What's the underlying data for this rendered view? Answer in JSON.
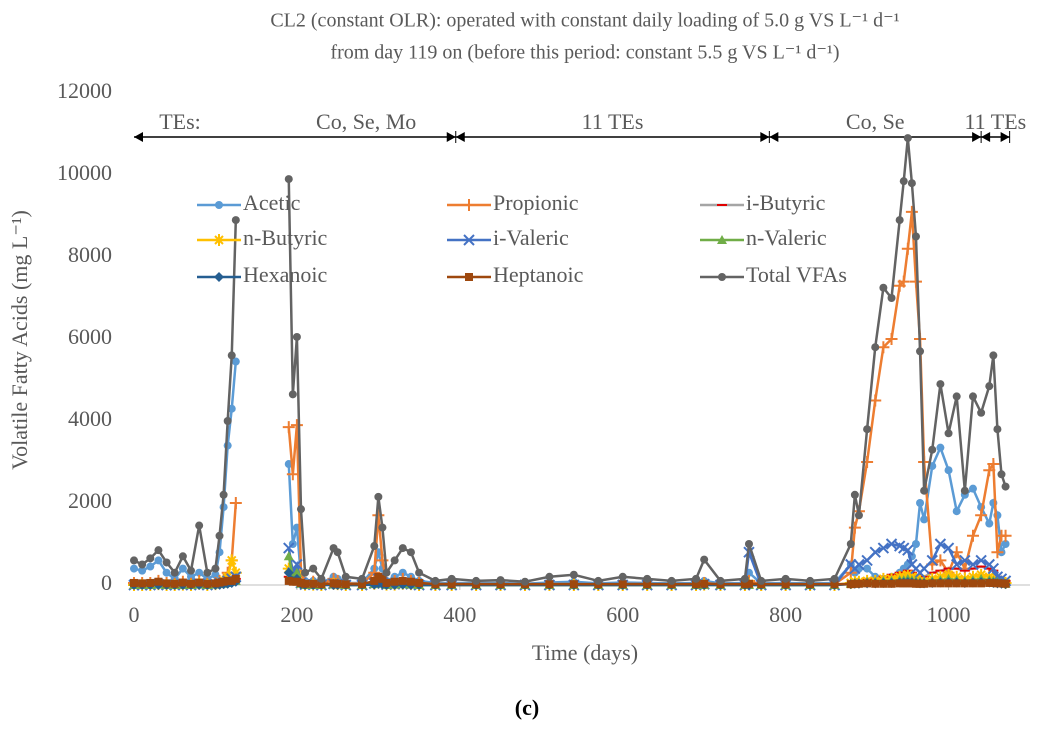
{
  "chart_data": {
    "type": "line",
    "title": [
      "CL2 (constant OLR): operated with constant daily loading of 5.0 g VS L⁻¹ d⁻¹",
      "from day 119 on (before this period: constant 5.5 g VS L⁻¹ d⁻¹)"
    ],
    "xlabel": "Time (days)",
    "ylabel": "Volatile Fatty Acids (mg L⁻¹)",
    "caption": "(c)",
    "xlim": [
      0,
      1100
    ],
    "xticks": [
      0,
      200,
      400,
      600,
      800,
      1000
    ],
    "ylim": [
      0,
      12000
    ],
    "yticks": [
      0,
      2000,
      4000,
      6000,
      8000,
      10000,
      12000
    ],
    "annotation": "TEs:",
    "periods": [
      {
        "label": "Co, Se, Mo",
        "start": 0,
        "end": 395
      },
      {
        "label": "11 TEs",
        "start": 395,
        "end": 780
      },
      {
        "label": "Co, Se",
        "start": 780,
        "end": 1040
      },
      {
        "label": "11 TEs",
        "start": 1040,
        "end": 1075
      }
    ],
    "x": [
      0,
      10,
      20,
      30,
      40,
      50,
      60,
      70,
      80,
      90,
      100,
      105,
      110,
      115,
      120,
      125,
      155,
      190,
      195,
      200,
      205,
      210,
      220,
      230,
      245,
      250,
      260,
      280,
      295,
      300,
      305,
      310,
      320,
      330,
      340,
      350,
      370,
      390,
      420,
      450,
      480,
      510,
      540,
      570,
      600,
      630,
      660,
      690,
      700,
      720,
      750,
      755,
      770,
      800,
      830,
      860,
      880,
      885,
      890,
      900,
      910,
      920,
      930,
      940,
      945,
      950,
      955,
      960,
      965,
      970,
      980,
      990,
      1000,
      1010,
      1020,
      1030,
      1040,
      1050,
      1055,
      1060,
      1065,
      1070
    ],
    "series": [
      {
        "name": "Acetic",
        "color": "#5b9bd5",
        "marker": "circle",
        "values": [
          400,
          350,
          450,
          600,
          300,
          150,
          400,
          200,
          300,
          150,
          250,
          800,
          1900,
          3400,
          4300,
          5450,
          null,
          2950,
          1000,
          1400,
          200,
          100,
          100,
          50,
          200,
          150,
          50,
          50,
          400,
          800,
          400,
          100,
          200,
          300,
          200,
          100,
          50,
          50,
          50,
          50,
          30,
          60,
          80,
          40,
          60,
          50,
          40,
          50,
          100,
          40,
          50,
          300,
          40,
          50,
          40,
          50,
          500,
          300,
          400,
          400,
          200,
          150,
          200,
          300,
          400,
          500,
          700,
          1000,
          2000,
          1600,
          2900,
          3350,
          2800,
          1800,
          2200,
          2350,
          1900,
          1500,
          2000,
          1700,
          800,
          1000
        ]
      },
      {
        "name": "Propionic",
        "color": "#ed7d31",
        "marker": "plus",
        "values": [
          50,
          50,
          50,
          100,
          50,
          30,
          80,
          30,
          100,
          30,
          50,
          100,
          150,
          300,
          600,
          2000,
          null,
          3850,
          2700,
          3900,
          300,
          50,
          80,
          30,
          150,
          100,
          40,
          30,
          300,
          1700,
          600,
          50,
          100,
          150,
          100,
          50,
          20,
          20,
          20,
          20,
          10,
          20,
          20,
          10,
          20,
          20,
          10,
          20,
          50,
          10,
          20,
          100,
          10,
          20,
          10,
          20,
          300,
          1400,
          1800,
          3000,
          4500,
          5800,
          6000,
          7300,
          7400,
          8200,
          9100,
          7400,
          6000,
          3000,
          500,
          600,
          300,
          800,
          400,
          1200,
          1700,
          2800,
          2950,
          800,
          1200,
          1200
        ]
      },
      {
        "name": "i-Butyric",
        "color": "#a5a5a5",
        "marker": "dash",
        "values": [
          0,
          0,
          0,
          10,
          0,
          0,
          10,
          0,
          20,
          0,
          10,
          30,
          50,
          80,
          100,
          150,
          null,
          200,
          100,
          150,
          30,
          10,
          10,
          0,
          20,
          10,
          0,
          0,
          20,
          60,
          30,
          10,
          10,
          20,
          10,
          0,
          0,
          0,
          0,
          0,
          0,
          0,
          0,
          0,
          0,
          0,
          0,
          0,
          10,
          0,
          0,
          30,
          0,
          0,
          0,
          0,
          50,
          100,
          100,
          150,
          150,
          200,
          250,
          300,
          300,
          350,
          300,
          250,
          200,
          200,
          300,
          350,
          400,
          400,
          350,
          400,
          450,
          400,
          350,
          200,
          150,
          100
        ]
      },
      {
        "name": "n-Butyric",
        "color": "#ffc000",
        "marker": "asterisk",
        "values": [
          0,
          0,
          0,
          20,
          0,
          0,
          10,
          0,
          30,
          0,
          20,
          50,
          100,
          200,
          600,
          300,
          null,
          400,
          200,
          300,
          50,
          10,
          10,
          0,
          30,
          20,
          0,
          0,
          30,
          100,
          50,
          10,
          10,
          30,
          20,
          0,
          0,
          0,
          0,
          0,
          0,
          0,
          0,
          0,
          0,
          0,
          0,
          0,
          10,
          0,
          0,
          20,
          0,
          0,
          0,
          0,
          50,
          80,
          80,
          100,
          100,
          150,
          150,
          200,
          200,
          250,
          200,
          150,
          100,
          100,
          150,
          200,
          250,
          200,
          150,
          200,
          250,
          200,
          150,
          100,
          80,
          50
        ]
      },
      {
        "name": "i-Valeric",
        "color": "#4472c4",
        "marker": "x",
        "values": [
          0,
          0,
          0,
          20,
          0,
          0,
          10,
          0,
          30,
          0,
          20,
          40,
          60,
          100,
          150,
          200,
          null,
          900,
          300,
          500,
          50,
          10,
          10,
          0,
          30,
          20,
          0,
          0,
          40,
          150,
          60,
          10,
          20,
          40,
          20,
          0,
          0,
          0,
          0,
          0,
          0,
          0,
          0,
          0,
          0,
          0,
          0,
          0,
          20,
          0,
          0,
          800,
          0,
          0,
          0,
          0,
          500,
          400,
          500,
          600,
          800,
          900,
          1000,
          950,
          900,
          850,
          500,
          400,
          300,
          400,
          600,
          1000,
          900,
          500,
          600,
          500,
          600,
          500,
          400,
          200,
          150,
          100
        ]
      },
      {
        "name": "n-Valeric",
        "color": "#70ad47",
        "marker": "triangle",
        "values": [
          0,
          0,
          0,
          10,
          0,
          0,
          0,
          0,
          10,
          0,
          10,
          20,
          30,
          50,
          80,
          100,
          null,
          700,
          200,
          300,
          30,
          0,
          0,
          0,
          10,
          10,
          0,
          0,
          20,
          80,
          30,
          0,
          10,
          20,
          10,
          0,
          0,
          0,
          0,
          0,
          0,
          0,
          0,
          0,
          0,
          0,
          0,
          0,
          0,
          0,
          0,
          0,
          0,
          0,
          0,
          0,
          30,
          50,
          50,
          80,
          80,
          100,
          100,
          120,
          120,
          150,
          120,
          100,
          80,
          80,
          100,
          120,
          150,
          120,
          100,
          120,
          150,
          120,
          100,
          80,
          50,
          30
        ]
      },
      {
        "name": "Hexanoic",
        "color": "#255e91",
        "marker": "diamond",
        "values": [
          0,
          0,
          0,
          0,
          0,
          0,
          0,
          0,
          0,
          0,
          0,
          10,
          20,
          30,
          50,
          80,
          null,
          300,
          100,
          150,
          20,
          0,
          0,
          0,
          0,
          0,
          0,
          0,
          10,
          40,
          20,
          0,
          0,
          10,
          0,
          0,
          0,
          0,
          0,
          0,
          0,
          0,
          0,
          0,
          0,
          0,
          0,
          0,
          0,
          0,
          0,
          0,
          0,
          0,
          0,
          0,
          20,
          30,
          30,
          40,
          40,
          50,
          50,
          60,
          60,
          70,
          60,
          50,
          40,
          40,
          50,
          60,
          70,
          60,
          50,
          60,
          70,
          60,
          50,
          40,
          30,
          20
        ]
      },
      {
        "name": "Heptanoic",
        "color": "#9e480e",
        "marker": "square",
        "values": [
          50,
          40,
          50,
          80,
          40,
          30,
          60,
          30,
          60,
          30,
          40,
          60,
          80,
          100,
          100,
          150,
          null,
          100,
          80,
          80,
          50,
          30,
          30,
          20,
          40,
          30,
          20,
          20,
          100,
          200,
          150,
          50,
          80,
          100,
          80,
          50,
          20,
          20,
          20,
          20,
          20,
          20,
          20,
          20,
          20,
          20,
          20,
          20,
          30,
          20,
          20,
          30,
          20,
          20,
          20,
          20,
          20,
          30,
          30,
          40,
          30,
          30,
          30,
          40,
          40,
          40,
          40,
          30,
          30,
          30,
          40,
          40,
          40,
          40,
          40,
          40,
          40,
          50,
          50,
          40,
          40,
          30
        ]
      },
      {
        "name": "Total VFAs",
        "color": "#636363",
        "marker": "circle",
        "values": [
          600,
          500,
          650,
          850,
          550,
          300,
          700,
          350,
          1450,
          300,
          400,
          1200,
          2200,
          4000,
          5600,
          8900,
          null,
          9900,
          4650,
          6050,
          1850,
          300,
          400,
          150,
          900,
          800,
          200,
          150,
          950,
          2150,
          1400,
          300,
          600,
          900,
          800,
          300,
          100,
          150,
          100,
          120,
          80,
          200,
          250,
          100,
          200,
          150,
          100,
          150,
          620,
          100,
          150,
          1000,
          100,
          150,
          100,
          150,
          1000,
          2200,
          1700,
          3800,
          5800,
          7250,
          7000,
          8900,
          9850,
          10900,
          9800,
          8500,
          5700,
          2300,
          3300,
          4900,
          3700,
          4600,
          2300,
          4600,
          4200,
          4850,
          5600,
          3800,
          2700,
          2400
        ]
      }
    ]
  }
}
